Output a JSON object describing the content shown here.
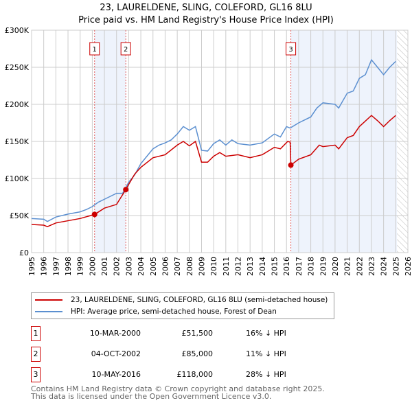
{
  "title": "23, LAURELDENE, SLING, COLEFORD, GL16 8LU",
  "subtitle": "Price paid vs. HM Land Registry's House Price Index (HPI)",
  "chart_data": {
    "type": "line",
    "title": "23, LAURELDENE, SLING, COLEFORD, GL16 8LU — Price paid vs. HM Land Registry's House Price Index (HPI)",
    "xlim": [
      1995,
      2026
    ],
    "ylim": [
      0,
      300000
    ],
    "x_ticks": [
      "1995",
      "1996",
      "1997",
      "1998",
      "1999",
      "2000",
      "2001",
      "2002",
      "2003",
      "2004",
      "2005",
      "2006",
      "2007",
      "2008",
      "2009",
      "2010",
      "2011",
      "2012",
      "2013",
      "2014",
      "2015",
      "2016",
      "2017",
      "2018",
      "2019",
      "2020",
      "2021",
      "2022",
      "2023",
      "2024",
      "2025",
      "2026"
    ],
    "y_ticks": [
      {
        "v": 0,
        "label": "£0"
      },
      {
        "v": 50000,
        "label": "£50K"
      },
      {
        "v": 100000,
        "label": "£100K"
      },
      {
        "v": 150000,
        "label": "£150K"
      },
      {
        "v": 200000,
        "label": "£200K"
      },
      {
        "v": 250000,
        "label": "£250K"
      },
      {
        "v": 300000,
        "label": "£300K"
      }
    ],
    "grid": true,
    "colors": {
      "price": "#cc0000",
      "hpi": "#5b8fd0",
      "shade": "#eef3fc",
      "marker": "#cc0000"
    },
    "series": [
      {
        "name": "23, LAURELDENE, SLING, COLEFORD, GL16 8LU (semi-detached house)",
        "x": [
          1995,
          1996,
          1996.3,
          1997,
          1998,
          1999,
          2000.19,
          2001,
          2002,
          2002.76,
          2003,
          2003.5,
          2004,
          2005,
          2006,
          2007,
          2007.5,
          2008,
          2008.5,
          2009,
          2009.5,
          2010,
          2010.5,
          2011,
          2012,
          2013,
          2014,
          2015,
          2015.5,
          2016.1,
          2016.3,
          2016.36,
          2017,
          2018,
          2018.7,
          2019,
          2020,
          2020.3,
          2021,
          2021.5,
          2022,
          2023,
          2023.5,
          2024,
          2024.5,
          2025
        ],
        "y": [
          38000,
          37000,
          35000,
          40000,
          43000,
          46000,
          51500,
          60000,
          65000,
          85000,
          92000,
          106000,
          115000,
          128000,
          132000,
          145000,
          150000,
          144000,
          150000,
          122000,
          122000,
          130000,
          135000,
          130000,
          132000,
          128000,
          132000,
          142000,
          140000,
          150000,
          149000,
          118000,
          126000,
          132000,
          145000,
          143000,
          145000,
          140000,
          155000,
          158000,
          170000,
          185000,
          178000,
          170000,
          178000,
          185000
        ]
      },
      {
        "name": "HPI: Average price, semi-detached house, Forest of Dean",
        "x": [
          1995,
          1996,
          1996.3,
          1997,
          1998,
          1999,
          1999.5,
          2000,
          2000.5,
          2001,
          2002,
          2002.5,
          2003,
          2003.5,
          2004,
          2004.5,
          2005,
          2005.5,
          2006,
          2006.5,
          2007,
          2007.5,
          2008,
          2008.5,
          2009,
          2009.5,
          2010,
          2010.5,
          2011,
          2011.5,
          2012,
          2013,
          2014,
          2015,
          2015.5,
          2016,
          2016.3,
          2017,
          2018,
          2018.5,
          2019,
          2020,
          2020.3,
          2021,
          2021.5,
          2022,
          2022.5,
          2023,
          2023.5,
          2024,
          2024.5,
          2025
        ],
        "y": [
          46000,
          45000,
          42000,
          48000,
          52000,
          55000,
          58000,
          62000,
          68000,
          72000,
          80000,
          80000,
          95000,
          105000,
          120000,
          130000,
          140000,
          145000,
          148000,
          152000,
          160000,
          170000,
          165000,
          170000,
          138000,
          137000,
          147000,
          152000,
          145000,
          152000,
          147000,
          145000,
          148000,
          160000,
          156000,
          170000,
          168000,
          175000,
          183000,
          195000,
          202000,
          200000,
          195000,
          215000,
          218000,
          235000,
          240000,
          260000,
          250000,
          240000,
          250000,
          258000
        ]
      }
    ],
    "sales": [
      {
        "label": "1",
        "x": 2000.19,
        "y": 51500
      },
      {
        "label": "2",
        "x": 2002.76,
        "y": 85000
      },
      {
        "label": "3",
        "x": 2016.36,
        "y": 118000
      }
    ],
    "shaded": [
      [
        2000.19,
        2002.76
      ],
      [
        2016.36,
        2025.1
      ]
    ],
    "hatched": [
      2025.1,
      2026
    ],
    "legend_position": "bottom"
  },
  "legend": {
    "price": "23, LAURELDENE, SLING, COLEFORD, GL16 8LU (semi-detached house)",
    "hpi": "HPI: Average price, semi-detached house, Forest of Dean"
  },
  "transactions": [
    {
      "n": "1",
      "date": "10-MAR-2000",
      "price": "£51,500",
      "hpi": "16% ↓ HPI"
    },
    {
      "n": "2",
      "date": "04-OCT-2002",
      "price": "£85,000",
      "hpi": "11% ↓ HPI"
    },
    {
      "n": "3",
      "date": "10-MAY-2016",
      "price": "£118,000",
      "hpi": "28% ↓ HPI"
    }
  ],
  "footer": {
    "line1": "Contains HM Land Registry data © Crown copyright and database right 2025.",
    "line2": "This data is licensed under the Open Government Licence v3.0."
  }
}
